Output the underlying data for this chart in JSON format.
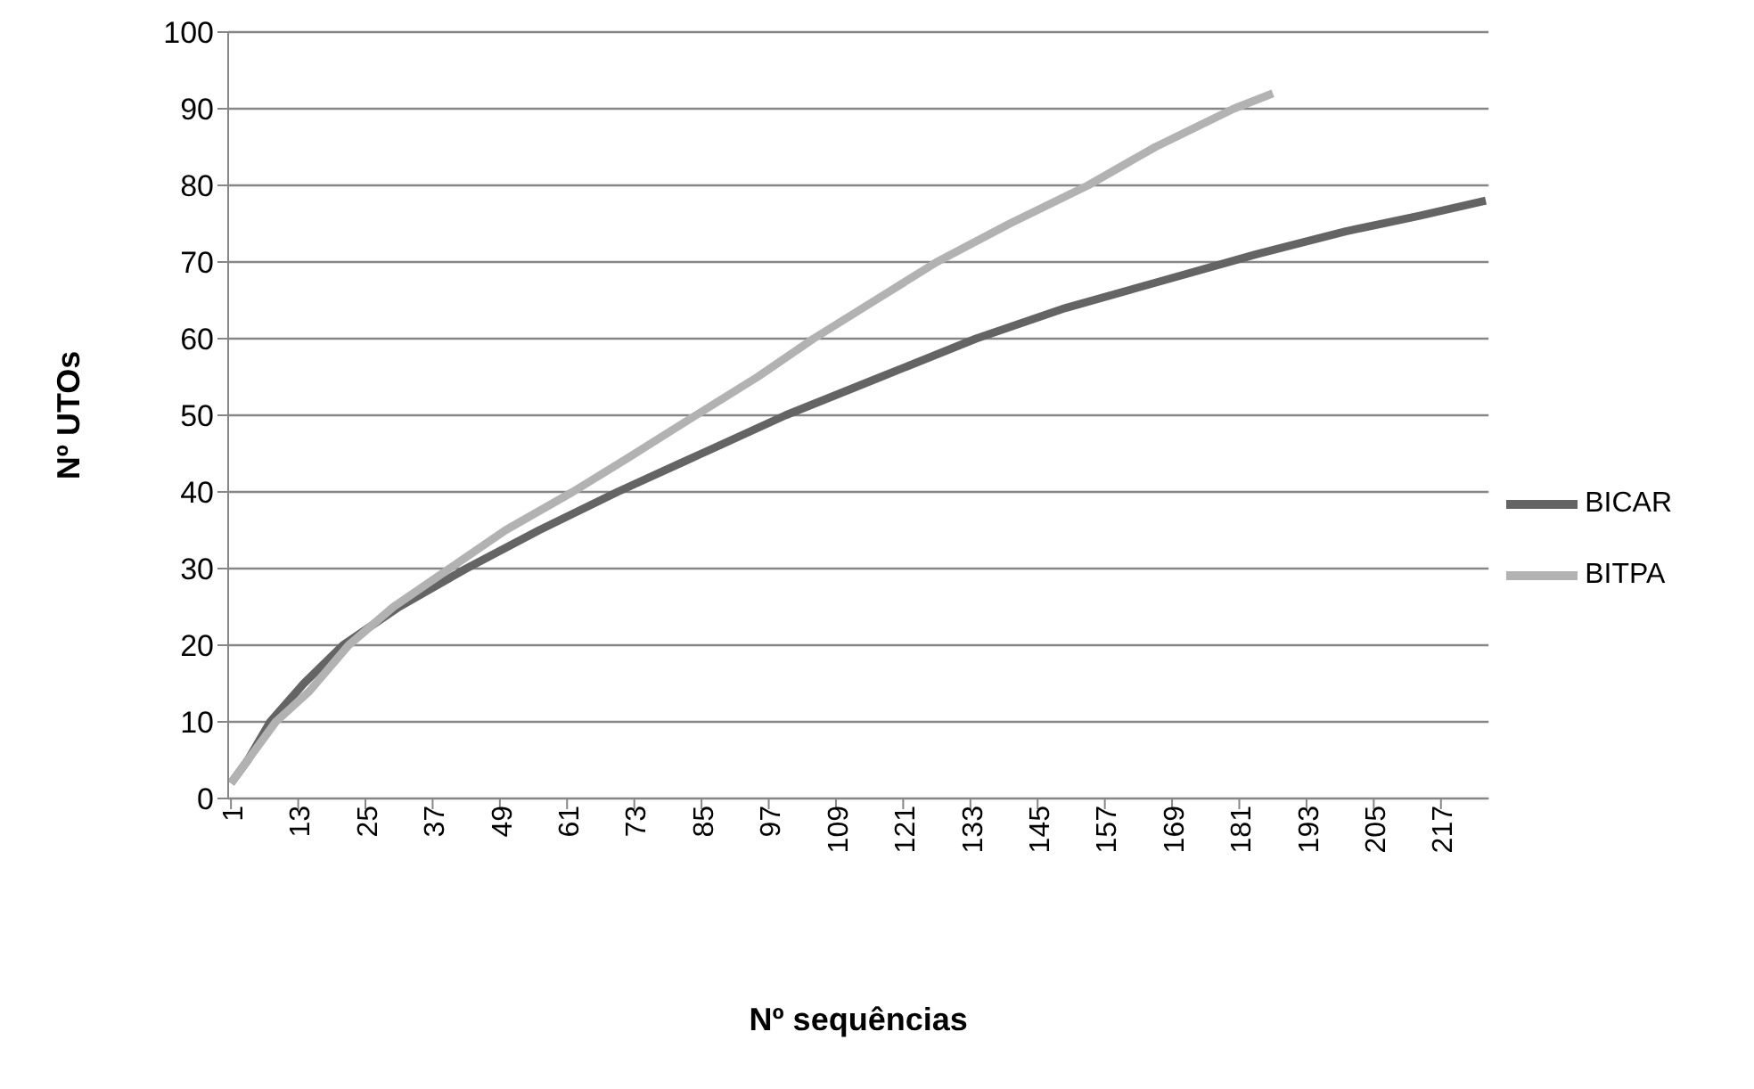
{
  "chart_data": {
    "type": "line",
    "xlabel": "Nº sequências",
    "ylabel": "Nº UTOs",
    "xlim": [
      0.5,
      225.5
    ],
    "xticks": [
      1,
      13,
      25,
      37,
      49,
      61,
      73,
      85,
      97,
      109,
      121,
      133,
      145,
      157,
      169,
      181,
      193,
      205,
      217
    ],
    "ylim": [
      0,
      100
    ],
    "yticks": [
      0,
      10,
      20,
      30,
      40,
      50,
      60,
      70,
      80,
      90,
      100
    ],
    "grid": "y",
    "legend": "right",
    "marker": "none",
    "line_style": "solid",
    "series": [
      {
        "name": "BICAR",
        "color": "#646464",
        "x": [
          1,
          4,
          8,
          14,
          21,
          31,
          43,
          56,
          70,
          85,
          100,
          117,
          134,
          150,
          167,
          184,
          200,
          213,
          225
        ],
        "values": [
          2,
          5,
          10,
          15,
          20,
          25,
          30,
          35,
          40,
          45,
          50,
          55,
          60,
          64,
          67.5,
          71,
          74,
          76,
          78
        ]
      },
      {
        "name": "BITPA",
        "color": "#b2b2b2",
        "x": [
          1,
          5,
          9,
          15,
          22,
          30,
          40,
          50,
          62,
          72,
          84,
          95,
          105,
          116,
          127,
          140,
          154,
          166,
          180,
          187
        ],
        "values": [
          2,
          6,
          10,
          14,
          20,
          25,
          30,
          35,
          40,
          44.5,
          50,
          55,
          60,
          65,
          70,
          75,
          80,
          85,
          90,
          92
        ]
      }
    ]
  }
}
